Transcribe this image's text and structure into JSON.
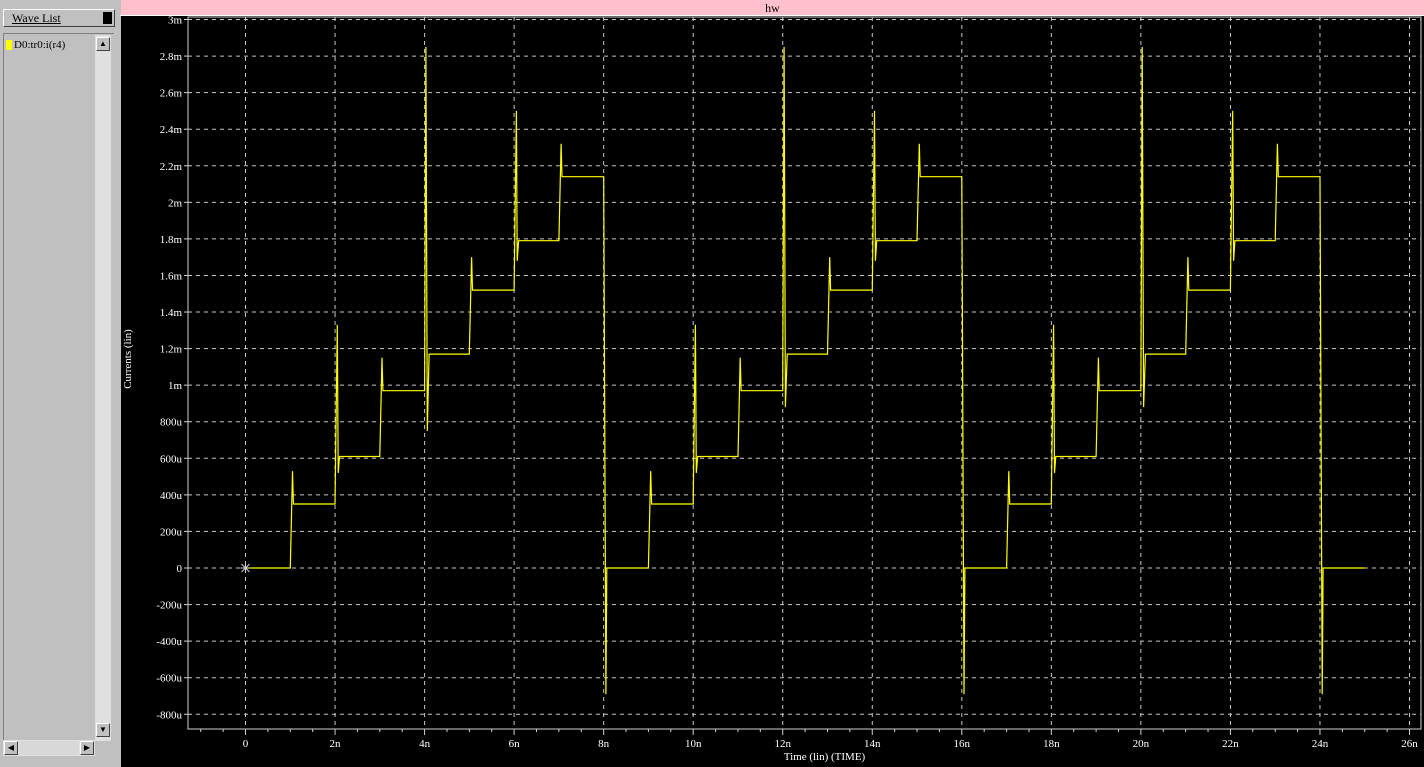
{
  "wave_panel": {
    "header_label": "Wave List",
    "items": [
      {
        "label": "D0:tr0:i(r4)",
        "color": "#ffff00"
      }
    ]
  },
  "scrollbar_icons": {
    "up": "▲",
    "down": "▼",
    "left": "◀",
    "right": "▶"
  },
  "plot": {
    "title": "hw",
    "background": "#000000",
    "trace_color": "#ffff00",
    "grid_color": "#c8c8c8"
  },
  "chart_data": {
    "type": "line",
    "title": "hw",
    "xlabel": "Time (lin) (TIME)",
    "ylabel": "Currents (lin)",
    "xlim": [
      -1.3,
      26.2
    ],
    "ylim": [
      -0.00083,
      0.003
    ],
    "x_tick_values": [
      0,
      2,
      4,
      6,
      8,
      10,
      12,
      14,
      16,
      18,
      20,
      22,
      24,
      26
    ],
    "x_tick_labels": [
      "0",
      "2n",
      "4n",
      "6n",
      "8n",
      "10n",
      "12n",
      "14n",
      "16n",
      "18n",
      "20n",
      "22n",
      "24n",
      "26n"
    ],
    "y_tick_values": [
      -0.0008,
      -0.0006,
      -0.0004,
      -0.0002,
      0,
      0.0002,
      0.0004,
      0.0006,
      0.0008,
      0.001,
      0.0012,
      0.0014,
      0.0016,
      0.0018,
      0.002,
      0.0022,
      0.0024,
      0.0026,
      0.0028,
      0.003
    ],
    "y_tick_labels": [
      "-800u",
      "-600u",
      "-400u",
      "-200u",
      "0",
      "200u",
      "400u",
      "600u",
      "800u",
      "1m",
      "1.2m",
      "1.4m",
      "1.6m",
      "1.8m",
      "2m",
      "2.2m",
      "2.4m",
      "2.6m",
      "2.8m",
      "3m"
    ],
    "grid": true,
    "start_marker": {
      "x": 0,
      "y": 0
    },
    "series": [
      {
        "x": [
          0,
          1.0,
          1.05,
          1.07,
          1.15,
          2.0,
          2.05,
          2.07,
          2.1,
          2.15,
          3.0,
          3.05,
          3.07,
          3.15,
          4.0,
          4.03,
          4.06,
          4.1,
          4.15,
          5.0,
          5.05,
          5.07,
          5.15,
          6.0,
          6.05,
          6.07,
          6.1,
          6.15,
          7.0,
          7.05,
          7.07,
          7.15,
          8.0,
          8.05,
          8.07,
          8.1,
          8.15,
          9.0,
          9.05,
          9.07,
          9.15,
          10.0,
          10.05,
          10.07,
          10.1,
          10.15,
          11.0,
          11.05,
          11.07,
          11.15,
          12.0,
          12.03,
          12.06,
          12.1,
          12.15,
          13.0,
          13.05,
          13.07,
          13.15,
          14.0,
          14.05,
          14.07,
          14.1,
          14.15,
          15.0,
          15.05,
          15.07,
          15.15,
          16.0,
          16.05,
          16.07,
          16.1,
          16.15,
          17.0,
          17.05,
          17.07,
          17.15,
          18.0,
          18.05,
          18.07,
          18.1,
          18.15,
          19.0,
          19.05,
          19.07,
          19.15,
          20.0,
          20.03,
          20.06,
          20.1,
          20.15,
          21.0,
          21.05,
          21.07,
          21.15,
          22.0,
          22.05,
          22.07,
          22.1,
          22.15,
          23.0,
          23.05,
          23.07,
          23.15,
          24.0,
          24.05,
          24.07,
          24.1,
          24.15,
          25.0
        ],
        "y": [
          0,
          0,
          0.00053,
          0.00035,
          0.00035,
          0.00035,
          0.00133,
          0.00052,
          0.00061,
          0.00061,
          0.00061,
          0.00115,
          0.00097,
          0.00097,
          0.00097,
          0.00285,
          0.00075,
          0.00117,
          0.00117,
          0.00117,
          0.0017,
          0.00152,
          0.00152,
          0.00152,
          0.0025,
          0.00168,
          0.00179,
          0.00179,
          0.00179,
          0.00232,
          0.00214,
          0.00214,
          0.00214,
          -0.00069,
          0.0,
          0.0,
          0.0,
          0.0,
          0.00053,
          0.00035,
          0.00035,
          0.00035,
          0.00133,
          0.00052,
          0.00061,
          0.00061,
          0.00061,
          0.00115,
          0.00097,
          0.00097,
          0.00097,
          0.00285,
          0.00088,
          0.00117,
          0.00117,
          0.00117,
          0.0017,
          0.00152,
          0.00152,
          0.00152,
          0.0025,
          0.00168,
          0.00179,
          0.00179,
          0.00179,
          0.00232,
          0.00214,
          0.00214,
          0.00214,
          -0.00069,
          0.0,
          0.0,
          0.0,
          0.0,
          0.00053,
          0.00035,
          0.00035,
          0.00035,
          0.00133,
          0.00052,
          0.00061,
          0.00061,
          0.00061,
          0.00115,
          0.00097,
          0.00097,
          0.00097,
          0.00285,
          0.00088,
          0.00117,
          0.00117,
          0.00117,
          0.0017,
          0.00152,
          0.00152,
          0.00152,
          0.0025,
          0.00168,
          0.00179,
          0.00179,
          0.00179,
          0.00232,
          0.00214,
          0.00214,
          0.00214,
          -0.00069,
          0.0,
          0.0,
          0.0,
          0.0
        ]
      }
    ]
  }
}
